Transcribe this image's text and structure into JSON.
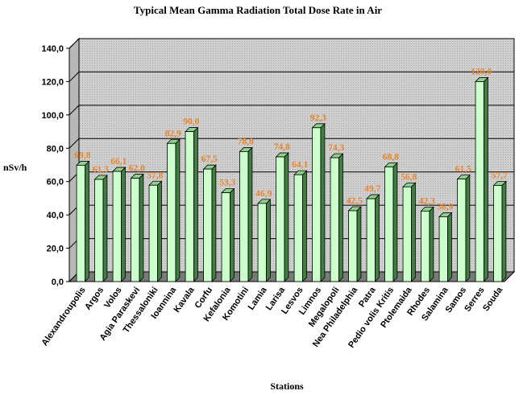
{
  "chart_data": {
    "type": "bar",
    "title": "Typical Mean Gamma Radiation Total Dose Rate in Air",
    "xlabel": "Stations",
    "ylabel": "nSv/h",
    "ylim": [
      0,
      140
    ],
    "yticks": [
      "0,0",
      "20,0",
      "40,0",
      "60,0",
      "80,0",
      "100,0",
      "120,0",
      "140,0"
    ],
    "grid": true,
    "legend": "none",
    "categories": [
      "Alexandroupolis",
      "Argos",
      "Volos",
      "Agia Paraskevi",
      "Thessaloniki",
      "Ioannina",
      "Kavala",
      "Corfu",
      "Kefalonia",
      "Komotini",
      "Lamia",
      "Larisa",
      "Lesvos",
      "Limnos",
      "Megalopoli",
      "Nea Philadelphia",
      "Patra",
      "Pedio volis Kritis",
      "Ptolemaida",
      "Rhodes",
      "Salamina",
      "Samos",
      "Serres",
      "Souda"
    ],
    "values": [
      69.8,
      61.3,
      66.1,
      62.0,
      57.8,
      82.9,
      90.0,
      67.5,
      53.3,
      78.0,
      46.9,
      74.8,
      64.1,
      92.3,
      74.3,
      42.5,
      49.7,
      68.8,
      56.8,
      42.3,
      38.9,
      61.5,
      120.0,
      57.7
    ],
    "value_labels": [
      "69,8",
      "61,3",
      "66,1",
      "62,0",
      "57,8",
      "82,9",
      "90,0",
      "67,5",
      "53,3",
      "78,0",
      "46,9",
      "74,8",
      "64,1",
      "92,3",
      "74,3",
      "42,5",
      "49,7",
      "68,8",
      "56,8",
      "42,3",
      "38,9",
      "61,5",
      "120,0",
      "57,7"
    ],
    "colors": {
      "bar_front": "#ccffcc",
      "bar_side": "#3f7f3f",
      "bar_top": "#8fd08f",
      "wall": "#c8c8c8",
      "floor": "#7a7a7a",
      "label": "#e8842a"
    }
  }
}
